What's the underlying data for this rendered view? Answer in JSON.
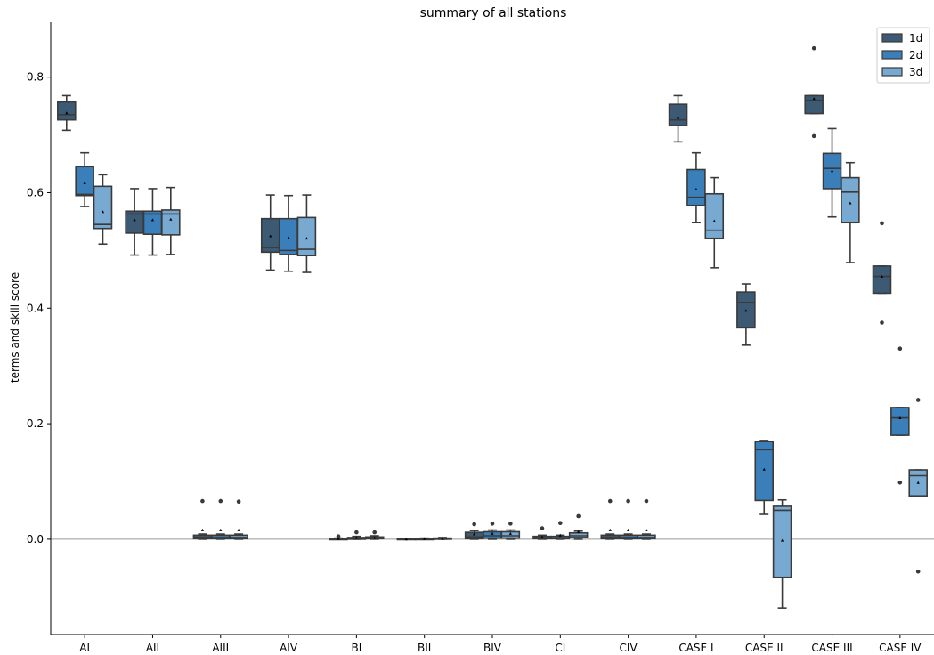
{
  "chart_data": {
    "type": "box",
    "title": "summary of all stations",
    "xlabel": "",
    "ylabel": "terms and skill score",
    "ylim": [
      -0.165,
      0.895
    ],
    "yticks": [
      0.0,
      0.2,
      0.4,
      0.6,
      0.8
    ],
    "ytick_labels": [
      "0.0",
      "0.2",
      "0.4",
      "0.6",
      "0.8"
    ],
    "zero_line": true,
    "grid": false,
    "legend_position": "top-right",
    "categories": [
      "AI",
      "AII",
      "AIII",
      "AIV",
      "BI",
      "BII",
      "BIV",
      "CI",
      "CIV",
      "CASE I",
      "CASE II",
      "CASE III",
      "CASE IV"
    ],
    "series": [
      {
        "name": "1d",
        "color": "#3d5a74",
        "boxes": [
          {
            "whislo": 0.708,
            "q1": 0.726,
            "med": 0.735,
            "q3": 0.757,
            "whishi": 0.768,
            "mean": 0.738,
            "fliers": []
          },
          {
            "whislo": 0.492,
            "q1": 0.53,
            "med": 0.563,
            "q3": 0.568,
            "whishi": 0.607,
            "mean": 0.553,
            "fliers": []
          },
          {
            "whislo": 0.0,
            "q1": 0.001,
            "med": 0.003,
            "q3": 0.007,
            "whishi": 0.009,
            "mean": 0.016,
            "fliers": [
              0.066
            ]
          },
          {
            "whislo": 0.466,
            "q1": 0.497,
            "med": 0.505,
            "q3": 0.555,
            "whishi": 0.596,
            "mean": 0.525,
            "fliers": []
          },
          {
            "whislo": 0.0,
            "q1": 0.0,
            "med": 0.001,
            "q3": 0.001,
            "whishi": 0.002,
            "mean": 0.001,
            "fliers": [
              0.005
            ]
          },
          {
            "whislo": 0.0,
            "q1": 0.0,
            "med": 0.0,
            "q3": 0.001,
            "whishi": 0.001,
            "mean": 0.0,
            "fliers": []
          },
          {
            "whislo": 0.0,
            "q1": 0.001,
            "med": 0.004,
            "q3": 0.012,
            "whishi": 0.015,
            "mean": 0.009,
            "fliers": [
              0.026
            ]
          },
          {
            "whislo": 0.0,
            "q1": 0.001,
            "med": 0.002,
            "q3": 0.005,
            "whishi": 0.007,
            "mean": 0.004,
            "fliers": [
              0.019
            ]
          },
          {
            "whislo": 0.0,
            "q1": 0.001,
            "med": 0.003,
            "q3": 0.007,
            "whishi": 0.009,
            "mean": 0.016,
            "fliers": [
              0.066
            ]
          },
          {
            "whislo": 0.688,
            "q1": 0.716,
            "med": 0.726,
            "q3": 0.753,
            "whishi": 0.768,
            "mean": 0.73,
            "fliers": []
          },
          {
            "whislo": 0.336,
            "q1": 0.366,
            "med": 0.41,
            "q3": 0.428,
            "whishi": 0.442,
            "mean": 0.396,
            "fliers": []
          },
          {
            "whislo": 0.737,
            "q1": 0.737,
            "med": 0.76,
            "q3": 0.768,
            "whishi": 0.768,
            "mean": 0.763,
            "fliers": [
              0.85,
              0.698
            ]
          },
          {
            "whislo": 0.426,
            "q1": 0.426,
            "med": 0.455,
            "q3": 0.473,
            "whishi": 0.473,
            "mean": 0.455,
            "fliers": [
              0.547,
              0.375
            ]
          }
        ]
      },
      {
        "name": "2d",
        "color": "#3a7fba",
        "boxes": [
          {
            "whislo": 0.576,
            "q1": 0.595,
            "med": 0.597,
            "q3": 0.645,
            "whishi": 0.669,
            "mean": 0.617,
            "fliers": []
          },
          {
            "whislo": 0.492,
            "q1": 0.528,
            "med": 0.563,
            "q3": 0.568,
            "whishi": 0.607,
            "mean": 0.553,
            "fliers": []
          },
          {
            "whislo": 0.0,
            "q1": 0.001,
            "med": 0.003,
            "q3": 0.007,
            "whishi": 0.009,
            "mean": 0.016,
            "fliers": [
              0.066
            ]
          },
          {
            "whislo": 0.464,
            "q1": 0.493,
            "med": 0.5,
            "q3": 0.555,
            "whishi": 0.595,
            "mean": 0.522,
            "fliers": []
          },
          {
            "whislo": 0.0,
            "q1": 0.0,
            "med": 0.001,
            "q3": 0.003,
            "whishi": 0.005,
            "mean": 0.003,
            "fliers": [
              0.012
            ]
          },
          {
            "whislo": 0.0,
            "q1": 0.0,
            "med": 0.0,
            "q3": 0.001,
            "whishi": 0.002,
            "mean": 0.001,
            "fliers": []
          },
          {
            "whislo": 0.0,
            "q1": 0.002,
            "med": 0.006,
            "q3": 0.013,
            "whishi": 0.016,
            "mean": 0.01,
            "fliers": [
              0.027
            ]
          },
          {
            "whislo": 0.0,
            "q1": 0.001,
            "med": 0.002,
            "q3": 0.005,
            "whishi": 0.007,
            "mean": 0.007,
            "fliers": [
              0.028
            ]
          },
          {
            "whislo": 0.0,
            "q1": 0.001,
            "med": 0.003,
            "q3": 0.007,
            "whishi": 0.009,
            "mean": 0.016,
            "fliers": [
              0.066
            ]
          },
          {
            "whislo": 0.548,
            "q1": 0.578,
            "med": 0.592,
            "q3": 0.64,
            "whishi": 0.669,
            "mean": 0.606,
            "fliers": []
          },
          {
            "whislo": 0.043,
            "q1": 0.067,
            "med": 0.155,
            "q3": 0.169,
            "whishi": 0.171,
            "mean": 0.121,
            "fliers": []
          },
          {
            "whislo": 0.558,
            "q1": 0.607,
            "med": 0.642,
            "q3": 0.668,
            "whishi": 0.711,
            "mean": 0.638,
            "fliers": []
          },
          {
            "whislo": 0.18,
            "q1": 0.18,
            "med": 0.21,
            "q3": 0.228,
            "whishi": 0.228,
            "mean": 0.21,
            "fliers": [
              0.33,
              0.098
            ]
          }
        ]
      },
      {
        "name": "3d",
        "color": "#78a9d1",
        "boxes": [
          {
            "whislo": 0.511,
            "q1": 0.538,
            "med": 0.545,
            "q3": 0.611,
            "whishi": 0.631,
            "mean": 0.567,
            "fliers": []
          },
          {
            "whislo": 0.493,
            "q1": 0.527,
            "med": 0.563,
            "q3": 0.57,
            "whishi": 0.609,
            "mean": 0.554,
            "fliers": []
          },
          {
            "whislo": 0.0,
            "q1": 0.001,
            "med": 0.003,
            "q3": 0.007,
            "whishi": 0.009,
            "mean": 0.016,
            "fliers": [
              0.065
            ]
          },
          {
            "whislo": 0.462,
            "q1": 0.491,
            "med": 0.502,
            "q3": 0.557,
            "whishi": 0.596,
            "mean": 0.521,
            "fliers": []
          },
          {
            "whislo": 0.0,
            "q1": 0.001,
            "med": 0.002,
            "q3": 0.004,
            "whishi": 0.006,
            "mean": 0.003,
            "fliers": [
              0.012
            ]
          },
          {
            "whislo": 0.0,
            "q1": 0.0,
            "med": 0.001,
            "q3": 0.002,
            "whishi": 0.003,
            "mean": 0.001,
            "fliers": []
          },
          {
            "whislo": 0.0,
            "q1": 0.002,
            "med": 0.006,
            "q3": 0.013,
            "whishi": 0.016,
            "mean": 0.01,
            "fliers": [
              0.027
            ]
          },
          {
            "whislo": 0.0,
            "q1": 0.003,
            "med": 0.006,
            "q3": 0.011,
            "whishi": 0.014,
            "mean": 0.013,
            "fliers": [
              0.04
            ]
          },
          {
            "whislo": 0.0,
            "q1": 0.001,
            "med": 0.003,
            "q3": 0.007,
            "whishi": 0.009,
            "mean": 0.016,
            "fliers": [
              0.066
            ]
          },
          {
            "whislo": 0.47,
            "q1": 0.521,
            "med": 0.535,
            "q3": 0.598,
            "whishi": 0.626,
            "mean": 0.551,
            "fliers": []
          },
          {
            "whislo": -0.119,
            "q1": -0.066,
            "med": 0.05,
            "q3": 0.057,
            "whishi": 0.068,
            "mean": -0.002,
            "fliers": []
          },
          {
            "whislo": 0.479,
            "q1": 0.548,
            "med": 0.601,
            "q3": 0.626,
            "whishi": 0.652,
            "mean": 0.582,
            "fliers": []
          },
          {
            "whislo": 0.075,
            "q1": 0.075,
            "med": 0.11,
            "q3": 0.12,
            "whishi": 0.12,
            "mean": 0.098,
            "fliers": [
              0.241,
              -0.056
            ]
          }
        ]
      }
    ]
  }
}
